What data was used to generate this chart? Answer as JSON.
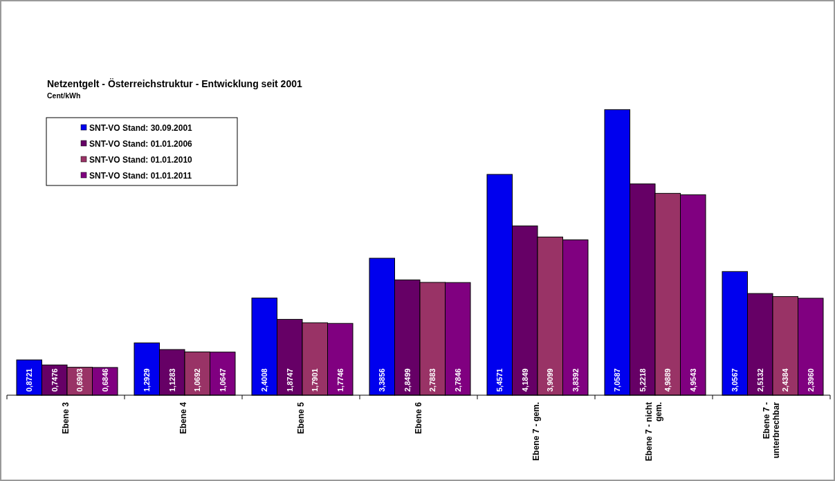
{
  "chart_data": {
    "type": "bar",
    "title": "Netzentgelt - Österreichstruktur - Entwicklung seit 2001",
    "subtitle": "Cent/kWh",
    "categories": [
      "Ebene 3",
      "Ebene 4",
      "Ebene 5",
      "Ebene 6",
      "Ebene 7 - gem.",
      "Ebene 7 - nicht gem.",
      "Ebene 7 - unterbrechbar"
    ],
    "series": [
      {
        "name": "SNT-VO Stand: 30.09.2001",
        "color": "#0000ee",
        "values": [
          0.8721,
          1.2929,
          2.4008,
          3.3856,
          5.4571,
          7.0587,
          3.0567
        ],
        "value_labels": [
          "0,8721",
          "1,2929",
          "2,4008",
          "3,3856",
          "5,4571",
          "7,0587",
          "3,0567"
        ]
      },
      {
        "name": "SNT-VO Stand: 01.01.2006",
        "color": "#660066",
        "values": [
          0.7476,
          1.1283,
          1.8747,
          2.8499,
          4.1849,
          5.2218,
          2.5132
        ],
        "value_labels": [
          "0,7476",
          "1,1283",
          "1,8747",
          "2,8499",
          "4,1849",
          "5,2218",
          "2,5132"
        ]
      },
      {
        "name": "SNT-VO Stand: 01.01.2010",
        "color": "#993366",
        "values": [
          0.6903,
          1.0692,
          1.7901,
          2.7883,
          3.9099,
          4.9889,
          2.4384
        ],
        "value_labels": [
          "0,6903",
          "1,0692",
          "1,7901",
          "2,7883",
          "3,9099",
          "4,9889",
          "2,4384"
        ]
      },
      {
        "name": "SNT-VO Stand: 01.01.2011",
        "color": "#800080",
        "values": [
          0.6846,
          1.0647,
          1.7746,
          2.7846,
          3.8392,
          4.9543,
          2.396
        ],
        "value_labels": [
          "0,6846",
          "1,0647",
          "1,7746",
          "2,7846",
          "3,8392",
          "4,9543",
          "2,3960"
        ]
      }
    ],
    "legend": "top left",
    "tick_labels": "x"
  }
}
